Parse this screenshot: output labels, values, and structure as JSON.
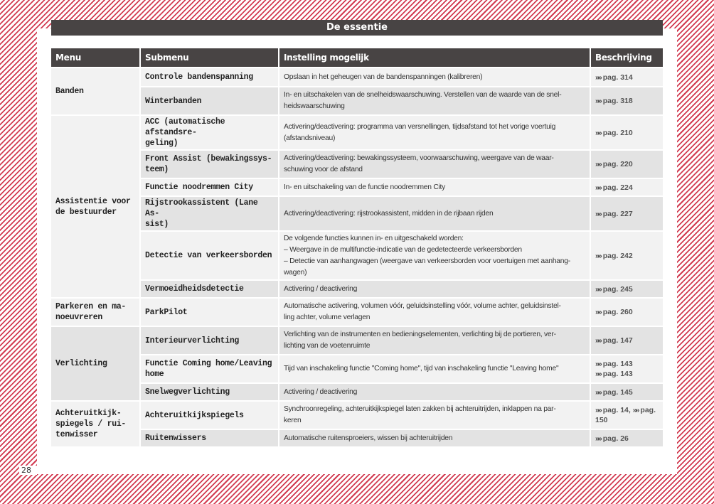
{
  "title": "De essentie",
  "page_number": "28",
  "accent_color": "#d23a50",
  "header_color": "#484444",
  "columns": [
    "Menu",
    "Submenu",
    "Instelling mogelijk",
    "Beschrijving"
  ],
  "groups": [
    {
      "menu": "Banden",
      "items": [
        {
          "submenu": "Controle bandenspanning",
          "setting": "Opslaan in het geheugen van de bandenspanningen (kalibreren)",
          "refs": [
            "pag. 314"
          ]
        },
        {
          "submenu": "Winterbanden",
          "setting": "In- en uitschakelen van de snelheidswaarschuwing. Verstellen van de waarde van de snel-\nheidswaarschuwing",
          "refs": [
            "pag. 318"
          ]
        }
      ]
    },
    {
      "menu": "Assistentie voor\nde bestuurder",
      "items": [
        {
          "submenu": "ACC (automatische afstandsre-\ngeling)",
          "setting": "Activering/deactivering: programma van versnellingen, tijdsafstand tot het vorige voertuig\n(afstandsniveau)",
          "refs": [
            "pag. 210"
          ]
        },
        {
          "submenu": "Front Assist (bewakingssys-\nteem)",
          "setting": "Activering/deactivering: bewakingssysteem, voorwaarschuwing, weergave van de waar-\nschuwing voor de afstand",
          "refs": [
            "pag. 220"
          ]
        },
        {
          "submenu": "Functie noodremmen City",
          "setting": "In- en uitschakeling van de functie noodremmen City",
          "refs": [
            "pag. 224"
          ]
        },
        {
          "submenu": "Rijstrookassistent (Lane As-\nsist)",
          "setting": "Activering/deactivering: rijstrookassistent, midden in de rijbaan rijden",
          "refs": [
            "pag. 227"
          ]
        },
        {
          "submenu": "Detectie van verkeersborden",
          "setting": "De volgende functies kunnen in- en uitgeschakeld worden:\n– Weergave in de multifunctie-indicatie van de gedetecteerde verkeersborden\n– Detectie van aanhangwagen (weergave van verkeersborden voor voertuigen met aanhang-\nwagen)",
          "refs": [
            "pag. 242"
          ]
        },
        {
          "submenu": "Vermoeidheidsdetectie",
          "setting": "Activering / deactivering",
          "refs": [
            "pag. 245"
          ]
        }
      ]
    },
    {
      "menu": "Parkeren en ma-\nnoeuvreren",
      "items": [
        {
          "submenu": "ParkPilot",
          "setting": "Automatische activering, volumen vóór, geluidsinstelling vóór, volume achter, geluidsinstel-\nling achter, volume verlagen",
          "refs": [
            "pag. 260"
          ]
        }
      ]
    },
    {
      "menu": "Verlichting",
      "items": [
        {
          "submenu": "Interieurverlichting",
          "setting": "Verlichting van de instrumenten en bedieningselementen, verlichting bij de portieren, ver-\nlichting van de voetenruimte",
          "refs": [
            "pag. 147"
          ]
        },
        {
          "submenu": "Functie Coming home/Leaving\nhome",
          "setting": "Tijd van inschakeling functie \"Coming home\", tijd van inschakeling functie \"Leaving home\"",
          "refs": [
            "pag. 143",
            "pag. 143"
          ]
        },
        {
          "submenu": "Snelwegverlichting",
          "setting": "Activering / deactivering",
          "refs": [
            "pag. 145"
          ]
        }
      ]
    },
    {
      "menu": "Achteruitkijk-\nspiegels / rui-\ntenwisser",
      "items": [
        {
          "submenu": "Achteruitkijkspiegels",
          "setting": "Synchroonregeling, achteruitkijkspiegel laten zakken bij achteruitrijden, inklappen na par-\nkeren",
          "refs": [
            "pag. 14,",
            "pag.\n150"
          ],
          "inline_refs": true
        },
        {
          "submenu": "Ruitenwissers",
          "setting": "Automatische ruitensproeiers, wissen bij achteruitrijden",
          "refs": [
            "pag. 26"
          ]
        }
      ]
    }
  ]
}
